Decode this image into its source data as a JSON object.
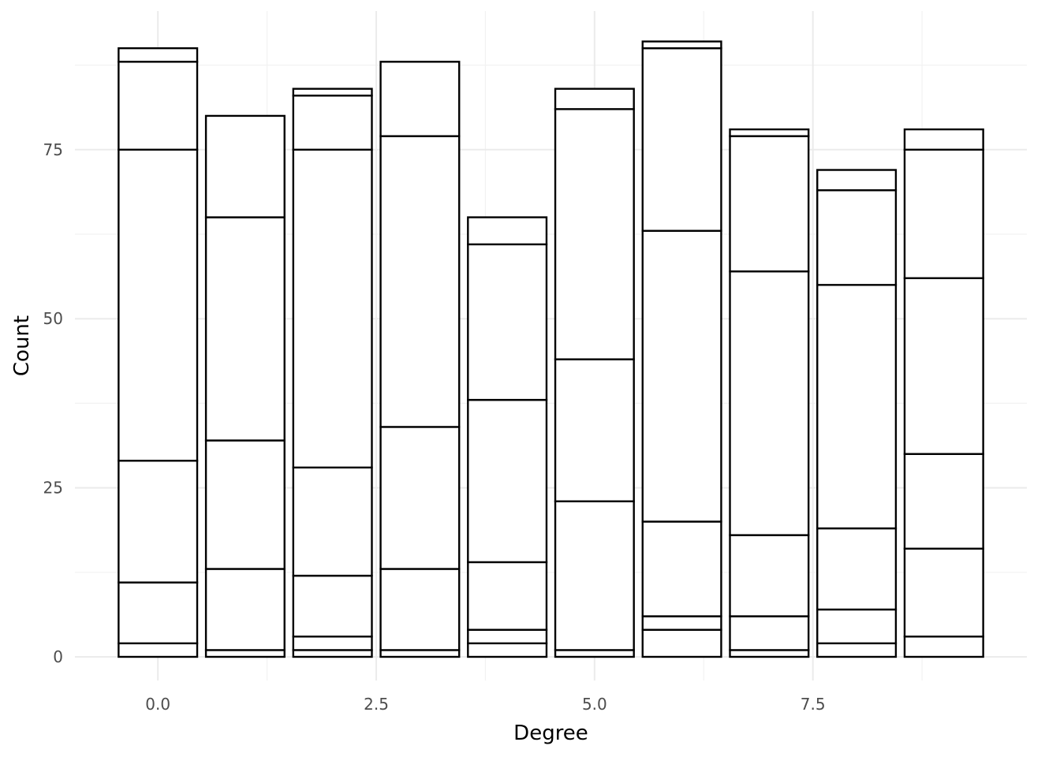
{
  "chart_data": {
    "type": "bar",
    "stacked": true,
    "xlabel": "Degree",
    "ylabel": "Count",
    "xlim": [
      -0.95,
      9.95
    ],
    "ylim": [
      -3.5,
      95.5
    ],
    "x_ticks": [
      0.0,
      2.5,
      5.0,
      7.5
    ],
    "x_tick_labels": [
      "0.0",
      "2.5",
      "5.0",
      "7.5"
    ],
    "y_ticks": [
      0,
      25,
      50,
      75
    ],
    "y_tick_labels": [
      "0",
      "25",
      "50",
      "75"
    ],
    "grid": true,
    "legend": "none",
    "bar_width": 0.9,
    "colors": {
      "fill": "#ffffff",
      "outline": "#000000",
      "grid": "#ebebeb"
    },
    "bars": [
      {
        "x": 0,
        "boundaries": [
          0,
          2,
          11,
          29,
          75,
          88,
          90
        ]
      },
      {
        "x": 1,
        "boundaries": [
          0,
          1,
          13,
          32,
          65,
          80
        ]
      },
      {
        "x": 2,
        "boundaries": [
          0,
          1,
          3,
          12,
          28,
          75,
          83,
          84
        ]
      },
      {
        "x": 3,
        "boundaries": [
          0,
          1,
          13,
          34,
          77,
          88
        ]
      },
      {
        "x": 4,
        "boundaries": [
          0,
          2,
          4,
          14,
          38,
          61,
          65
        ]
      },
      {
        "x": 5,
        "boundaries": [
          0,
          1,
          23,
          44,
          81,
          84
        ]
      },
      {
        "x": 6,
        "boundaries": [
          0,
          4,
          6,
          20,
          63,
          90,
          91
        ]
      },
      {
        "x": 7,
        "boundaries": [
          0,
          1,
          6,
          18,
          57,
          77,
          78
        ]
      },
      {
        "x": 8,
        "boundaries": [
          0,
          2,
          7,
          19,
          55,
          69,
          72
        ]
      },
      {
        "x": 9,
        "boundaries": [
          0,
          3,
          16,
          30,
          56,
          75,
          78
        ]
      }
    ]
  }
}
